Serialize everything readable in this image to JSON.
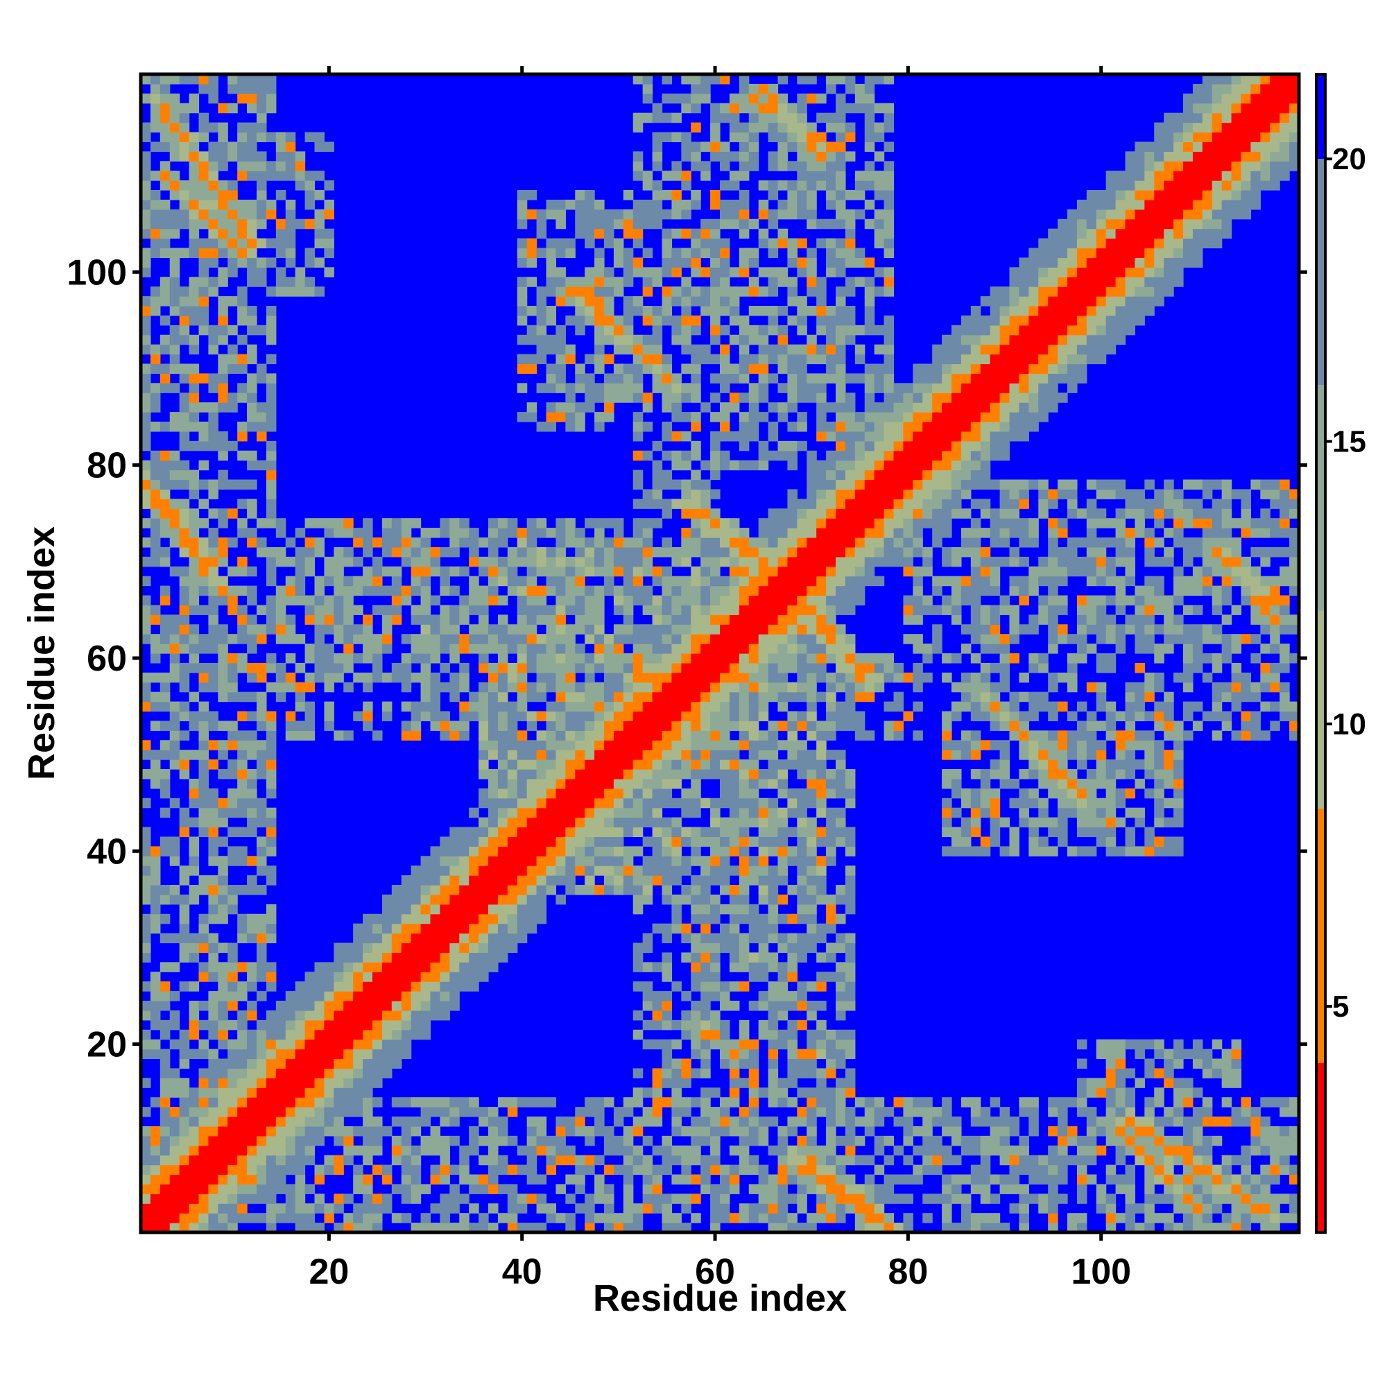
{
  "chart_data": {
    "type": "heatmap",
    "title": "",
    "xlabel": "Residue index",
    "ylabel": "Residue index",
    "n_residues": 120,
    "xlim": [
      1,
      120
    ],
    "ylim": [
      1,
      120
    ],
    "x_ticks": [
      20,
      40,
      60,
      80,
      100
    ],
    "y_ticks": [
      20,
      40,
      60,
      80,
      100
    ],
    "colorbar": {
      "range": [
        1,
        21.5
      ],
      "ticks": [
        5,
        10,
        15,
        20
      ],
      "unit": "",
      "bands": [
        {
          "from": 1,
          "to": 4,
          "color": "#ff0000"
        },
        {
          "from": 4,
          "to": 8.5,
          "color": "#ff8000"
        },
        {
          "from": 8.5,
          "to": 12,
          "color": "#a8b88a"
        },
        {
          "from": 12,
          "to": 16,
          "color": "#8eaa96"
        },
        {
          "from": 16,
          "to": 21.5,
          "color": "#6d8aa8"
        }
      ],
      "saturation_color": "#0000ff"
    },
    "description_of_values": "symmetric pairwise residue distance map; diagonal near 1-4, orange contacts 5-8, green/grey 9-20, blue above 20",
    "contact_segments": [
      {
        "i1": 2,
        "j1": 118,
        "i2": 12,
        "j2": 103,
        "v": 6
      },
      {
        "i1": 1,
        "j1": 78,
        "i2": 8,
        "j2": 70,
        "v": 6
      },
      {
        "i1": 9,
        "j1": 15,
        "i2": 14,
        "j2": 10,
        "v": 7
      },
      {
        "i1": 17,
        "j1": 22,
        "i2": 22,
        "j2": 18,
        "v": 7
      },
      {
        "i1": 68,
        "j1": 8,
        "i2": 78,
        "j2": 1,
        "v": 6
      },
      {
        "i1": 102,
        "j1": 11,
        "i2": 110,
        "j2": 3,
        "v": 6
      },
      {
        "i1": 57,
        "j1": 76,
        "i2": 66,
        "j2": 69,
        "v": 6
      },
      {
        "i1": 69,
        "j1": 66,
        "i2": 76,
        "j2": 58,
        "v": 6
      },
      {
        "i1": 45,
        "j1": 98,
        "i2": 56,
        "j2": 88,
        "v": 7
      },
      {
        "i1": 88,
        "j1": 56,
        "i2": 98,
        "j2": 46,
        "v": 7
      },
      {
        "i1": 52,
        "j1": 60,
        "i2": 56,
        "j2": 52,
        "v": 7
      },
      {
        "i1": 79,
        "j1": 84,
        "i2": 84,
        "j2": 78,
        "v": 7
      },
      {
        "i1": 112,
        "j1": 71,
        "i2": 118,
        "j2": 66,
        "v": 7
      },
      {
        "i1": 64,
        "j1": 118,
        "i2": 71,
        "j2": 113,
        "v": 7
      }
    ],
    "regions": [
      {
        "x": [
          1,
          14
        ],
        "y": [
          1,
          120
        ],
        "v": 15
      },
      {
        "x": [
          1,
          120
        ],
        "y": [
          1,
          14
        ],
        "v": 15
      },
      {
        "x": [
          36,
          68
        ],
        "y": [
          46,
          72
        ],
        "v": 13
      },
      {
        "x": [
          46,
          72
        ],
        "y": [
          36,
          68
        ],
        "v": 13
      },
      {
        "x": [
          52,
          60
        ],
        "y": [
          1,
          120
        ],
        "v": 16
      },
      {
        "x": [
          1,
          120
        ],
        "y": [
          52,
          60
        ],
        "v": 16
      },
      {
        "x": [
          60,
          78
        ],
        "y": [
          80,
          120
        ],
        "v": 15
      },
      {
        "x": [
          80,
          120
        ],
        "y": [
          60,
          78
        ],
        "v": 15
      },
      {
        "x": [
          18,
          50
        ],
        "y": [
          58,
          74
        ],
        "v": 14
      },
      {
        "x": [
          58,
          74
        ],
        "y": [
          18,
          50
        ],
        "v": 14
      },
      {
        "x": [
          84,
          108
        ],
        "y": [
          40,
          58
        ],
        "v": 15
      },
      {
        "x": [
          40,
          58
        ],
        "y": [
          84,
          108
        ],
        "v": 15
      },
      {
        "x": [
          62,
          74
        ],
        "y": [
          1,
          30
        ],
        "v": 15
      },
      {
        "x": [
          1,
          30
        ],
        "y": [
          62,
          74
        ],
        "v": 15
      },
      {
        "x": [
          98,
          114
        ],
        "y": [
          1,
          20
        ],
        "v": 15
      },
      {
        "x": [
          1,
          20
        ],
        "y": [
          98,
          114
        ],
        "v": 15
      },
      {
        "x": [
          100,
          120
        ],
        "y": [
          64,
          78
        ],
        "v": 15
      },
      {
        "x": [
          64,
          78
        ],
        "y": [
          100,
          120
        ],
        "v": 15
      }
    ]
  }
}
